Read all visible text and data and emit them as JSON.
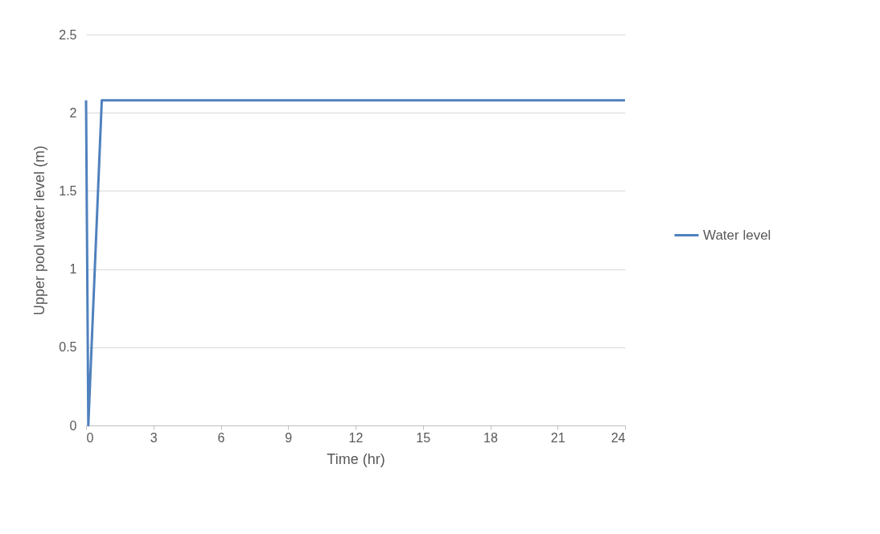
{
  "chart_data": {
    "type": "line",
    "xlabel": "Time (hr)",
    "ylabel": "Upper pool water  level (m)",
    "x": [
      0,
      0.1,
      0.7,
      24
    ],
    "series": [
      {
        "name": "Water level",
        "color": "#4f81bd",
        "values": [
          2.08,
          0,
          2.08,
          2.08
        ]
      }
    ],
    "xlim": [
      0,
      24
    ],
    "xticks": [
      0,
      3,
      6,
      9,
      12,
      15,
      18,
      21,
      24
    ],
    "ylim": [
      0,
      2.5
    ],
    "yticks": [
      0,
      0.5,
      1,
      1.5,
      2,
      2.5
    ],
    "grid": "y",
    "legend": "right",
    "marker": "none",
    "line_style": "solid"
  }
}
